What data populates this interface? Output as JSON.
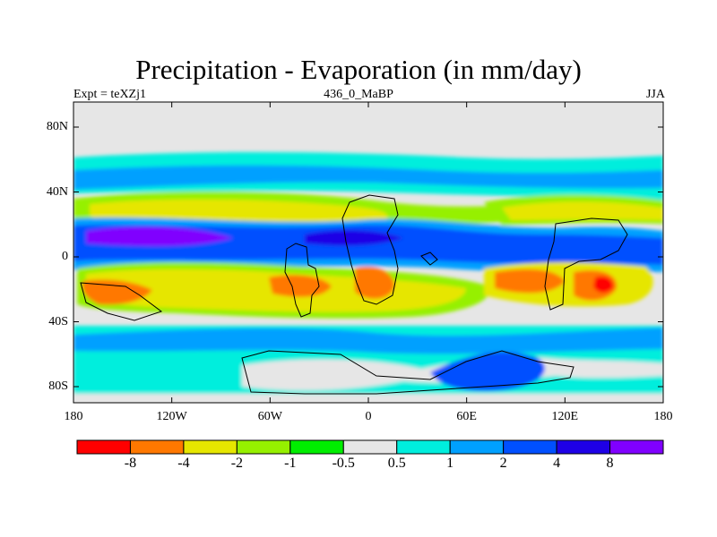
{
  "title": "Precipitation - Evaporation (in mm/day)",
  "left_string": "Expt = teXZj1",
  "center_string": "436_0_MaBP",
  "right_string": "JJA",
  "y_axis": {
    "tick_labels": [
      {
        "value": 80,
        "label": "80N"
      },
      {
        "value": 40,
        "label": "40N"
      },
      {
        "value": 0,
        "label": "0"
      },
      {
        "value": -40,
        "label": "40S"
      },
      {
        "value": -80,
        "label": "80S"
      }
    ]
  },
  "x_axis": {
    "tick_labels": [
      {
        "value": -180,
        "label": "180"
      },
      {
        "value": -120,
        "label": "120W"
      },
      {
        "value": -60,
        "label": "60W"
      },
      {
        "value": 0,
        "label": "0"
      },
      {
        "value": 60,
        "label": "60E"
      },
      {
        "value": 120,
        "label": "120E"
      },
      {
        "value": 180,
        "label": "180"
      }
    ]
  },
  "colorbar": {
    "colors": [
      "#ff0000",
      "#ff7800",
      "#e6e600",
      "#96f000",
      "#00ee00",
      "#e6e6e6",
      "#00eedd",
      "#00a0ff",
      "#0050ff",
      "#1e00e6",
      "#8000ff"
    ],
    "labels": [
      "-8",
      "-4",
      "-2",
      "-1",
      "-0.5",
      "0.5",
      "1",
      "2",
      "4",
      "8"
    ]
  },
  "colors": {
    "ocean_background": "#e6e6e6",
    "coastline": "#000000"
  }
}
